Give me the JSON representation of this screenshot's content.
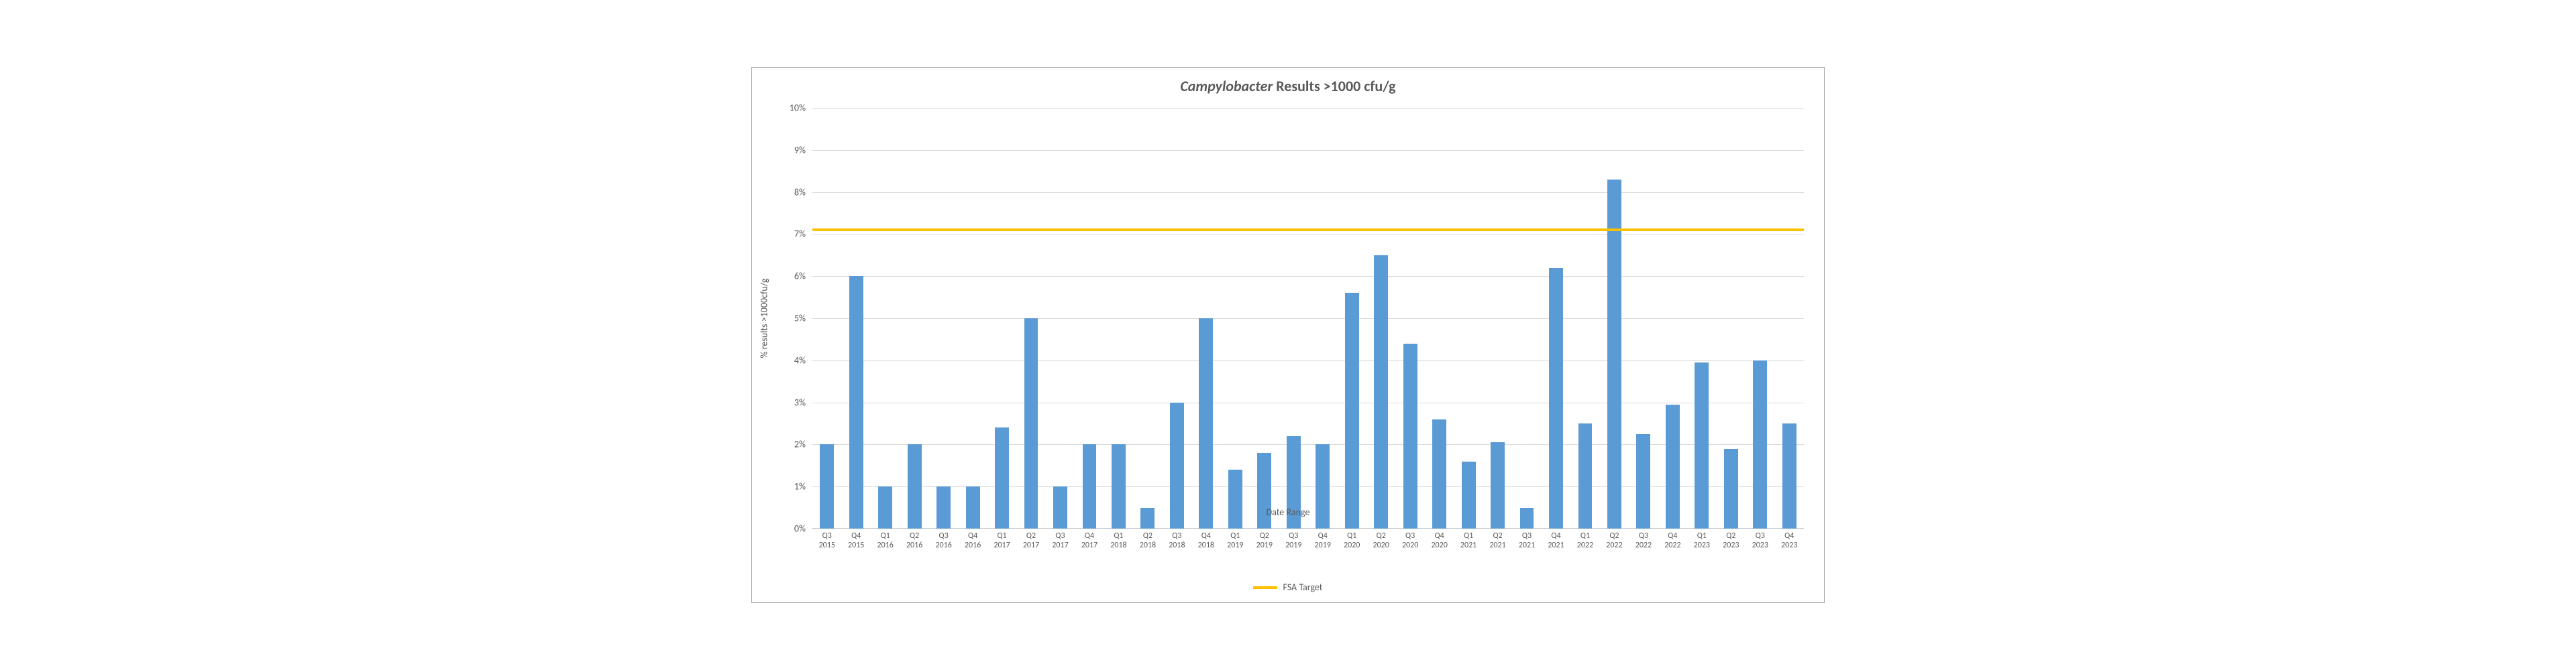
{
  "chart": {
    "type": "bar",
    "title_prefix_italic": "Campylobacter",
    "title_rest": " Results >1000 cfu/g",
    "title_fontsize": 22,
    "background_color": "#ffffff",
    "border_color": "#a6a6a6",
    "grid_color": "#d9d9d9",
    "label_color": "#595959",
    "ylabel": "% results >1000cfu/g",
    "xlabel": "Date Range",
    "label_fontsize": 14,
    "ylim_min": 0,
    "ylim_max": 10,
    "ytick_step": 1,
    "ytick_format_suffix": "%",
    "bar_color": "#5b9bd5",
    "bar_width_ratio": 0.48,
    "target": {
      "value": 7.1,
      "label": "FSA Target",
      "color": "#ffc000",
      "line_width": 4
    },
    "categories": [
      {
        "q": "Q3",
        "y": "2015"
      },
      {
        "q": "Q4",
        "y": "2015"
      },
      {
        "q": "Q1",
        "y": "2016"
      },
      {
        "q": "Q2",
        "y": "2016"
      },
      {
        "q": "Q3",
        "y": "2016"
      },
      {
        "q": "Q4",
        "y": "2016"
      },
      {
        "q": "Q1",
        "y": "2017"
      },
      {
        "q": "Q2",
        "y": "2017"
      },
      {
        "q": "Q3",
        "y": "2017"
      },
      {
        "q": "Q4",
        "y": "2017"
      },
      {
        "q": "Q1",
        "y": "2018"
      },
      {
        "q": "Q2",
        "y": "2018"
      },
      {
        "q": "Q3",
        "y": "2018"
      },
      {
        "q": "Q4",
        "y": "2018"
      },
      {
        "q": "Q1",
        "y": "2019"
      },
      {
        "q": "Q2",
        "y": "2019"
      },
      {
        "q": "Q3",
        "y": "2019"
      },
      {
        "q": "Q4",
        "y": "2019"
      },
      {
        "q": "Q1",
        "y": "2020"
      },
      {
        "q": "Q2",
        "y": "2020"
      },
      {
        "q": "Q3",
        "y": "2020"
      },
      {
        "q": "Q4",
        "y": "2020"
      },
      {
        "q": "Q1",
        "y": "2021"
      },
      {
        "q": "Q2",
        "y": "2021"
      },
      {
        "q": "Q3",
        "y": "2021"
      },
      {
        "q": "Q4",
        "y": "2021"
      },
      {
        "q": "Q1",
        "y": "2022"
      },
      {
        "q": "Q2",
        "y": "2022"
      },
      {
        "q": "Q3",
        "y": "2022"
      },
      {
        "q": "Q4",
        "y": "2022"
      },
      {
        "q": "Q1",
        "y": "2023"
      },
      {
        "q": "Q2",
        "y": "2023"
      },
      {
        "q": "Q3",
        "y": "2023"
      },
      {
        "q": "Q4",
        "y": "2023"
      }
    ],
    "values": [
      2.0,
      6.0,
      1.0,
      2.0,
      1.0,
      1.0,
      2.4,
      5.0,
      1.0,
      2.0,
      2.0,
      0.5,
      3.0,
      5.0,
      1.4,
      1.8,
      2.2,
      2.0,
      5.6,
      6.5,
      4.4,
      2.6,
      1.6,
      2.05,
      0.5,
      6.2,
      2.5,
      8.3,
      2.25,
      2.95,
      3.95,
      1.9,
      4.0,
      2.5
    ]
  }
}
